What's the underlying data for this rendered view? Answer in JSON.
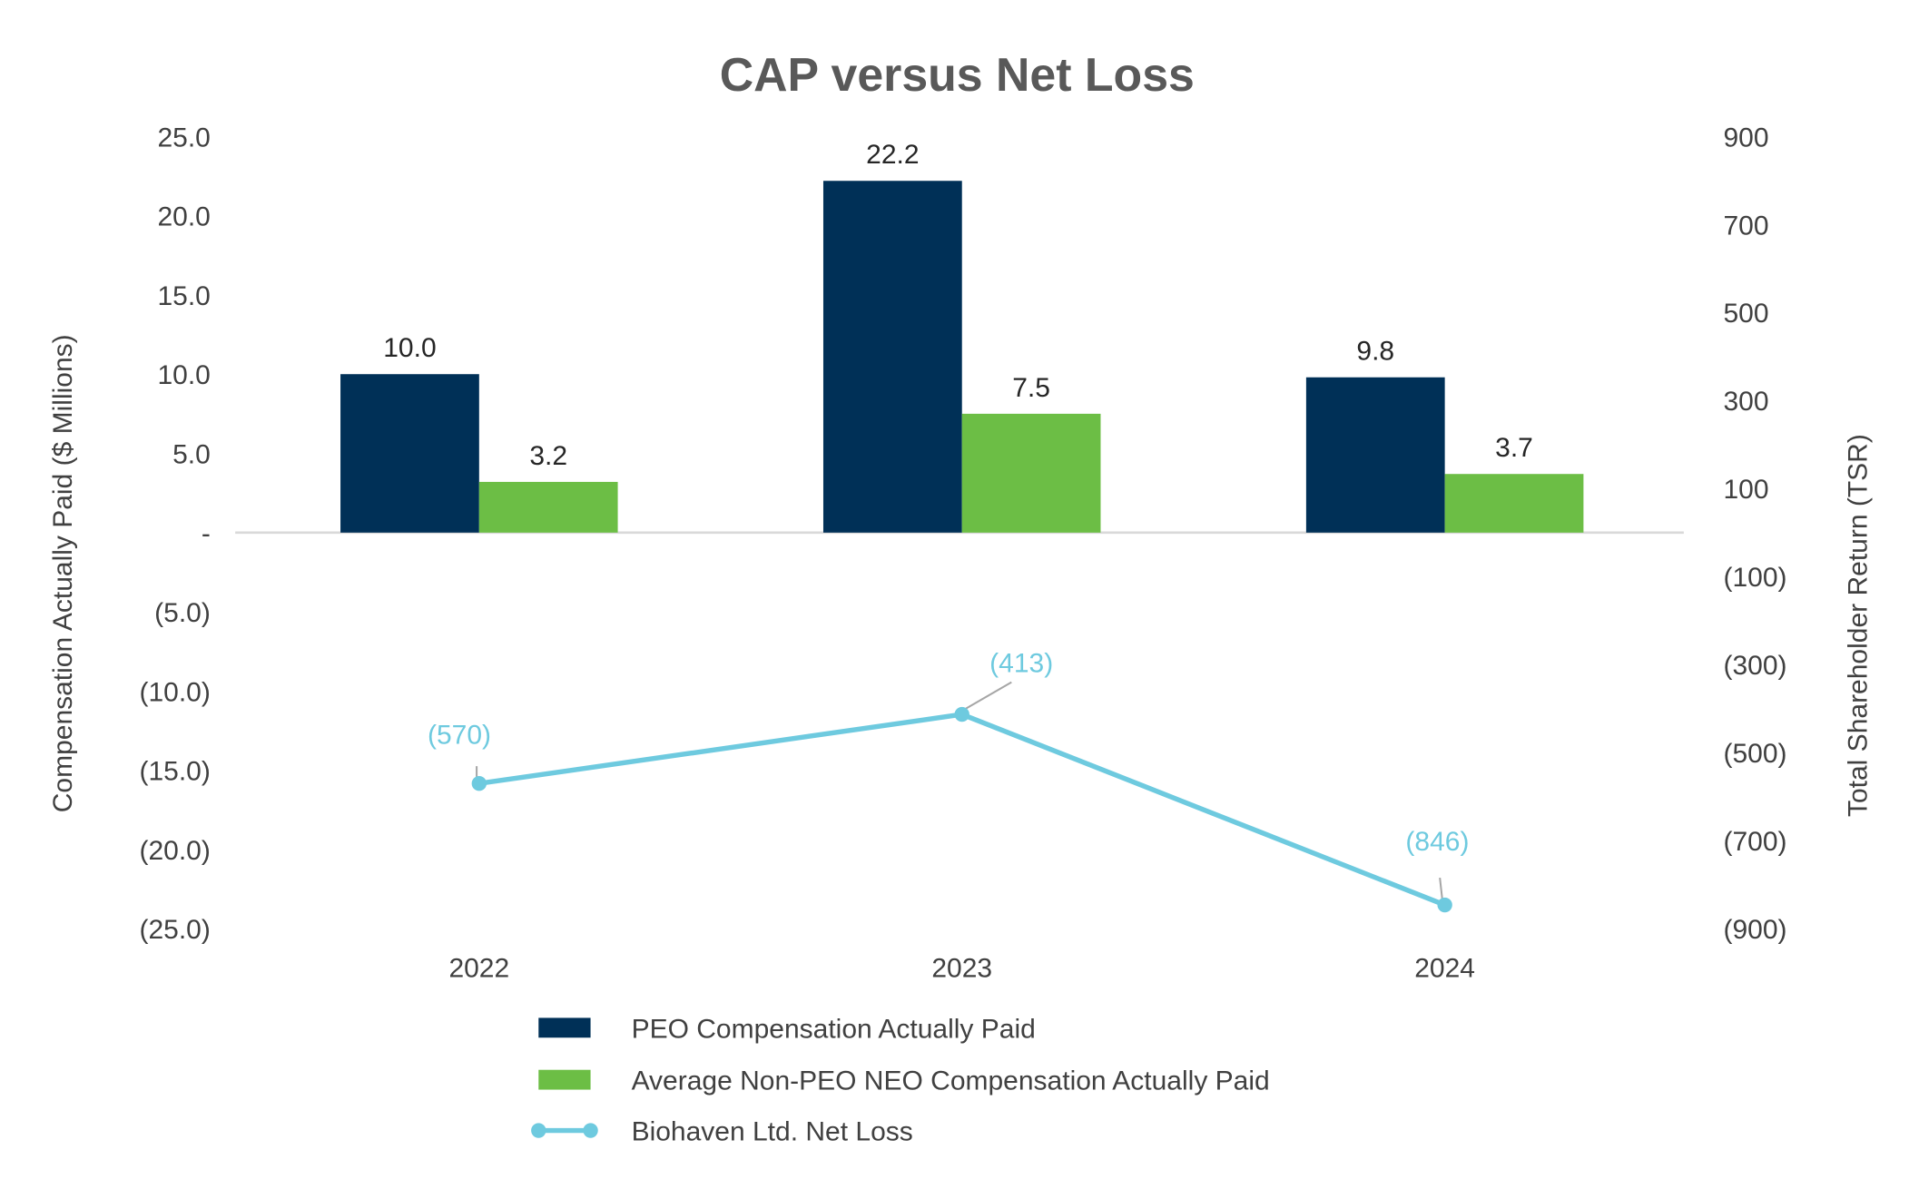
{
  "chart_data": {
    "type": "bar+line",
    "title": "CAP versus Net Loss",
    "categories": [
      "2022",
      "2023",
      "2024"
    ],
    "ylabel_left": "Compensation Actually Paid ($ Millions)",
    "ylabel_right": "Total Shareholder Return (TSR)",
    "ylim_left": [
      -25,
      25
    ],
    "ylim_right": [
      -900,
      900
    ],
    "left_ticks": [
      25,
      20,
      15,
      10,
      5,
      0,
      -5,
      -10,
      -15,
      -20,
      -25
    ],
    "left_tick_labels": [
      "25.0",
      "20.0",
      "15.0",
      "10.0",
      "5.0",
      "-",
      "(5.0)",
      "(10.0)",
      "(15.0)",
      "(20.0)",
      "(25.0)"
    ],
    "right_ticks": [
      900,
      700,
      500,
      300,
      100,
      -100,
      -300,
      -500,
      -700,
      -900
    ],
    "right_tick_labels": [
      "900",
      "700",
      "500",
      "300",
      "100",
      "(100)",
      "(300)",
      "(500)",
      "(700)",
      "(900)"
    ],
    "grid": false,
    "legend_position": "bottom",
    "series": [
      {
        "name": "PEO Compensation Actually Paid",
        "type": "bar",
        "axis": "left",
        "color": "#003057",
        "values": [
          10.0,
          22.2,
          9.8
        ],
        "labels": [
          "10.0",
          "22.2",
          "9.8"
        ]
      },
      {
        "name": "Average Non-PEO NEO Compensation Actually Paid",
        "type": "bar",
        "axis": "left",
        "color": "#6CBE45",
        "values": [
          3.2,
          7.5,
          3.7
        ],
        "labels": [
          "3.2",
          "7.5",
          "3.7"
        ]
      },
      {
        "name": "Biohaven Ltd. Net Loss",
        "type": "line",
        "axis": "right",
        "color": "#6ECADF",
        "values": [
          -570,
          -413,
          -846
        ],
        "labels": [
          "(570)",
          "(413)",
          "(846)"
        ]
      }
    ]
  }
}
